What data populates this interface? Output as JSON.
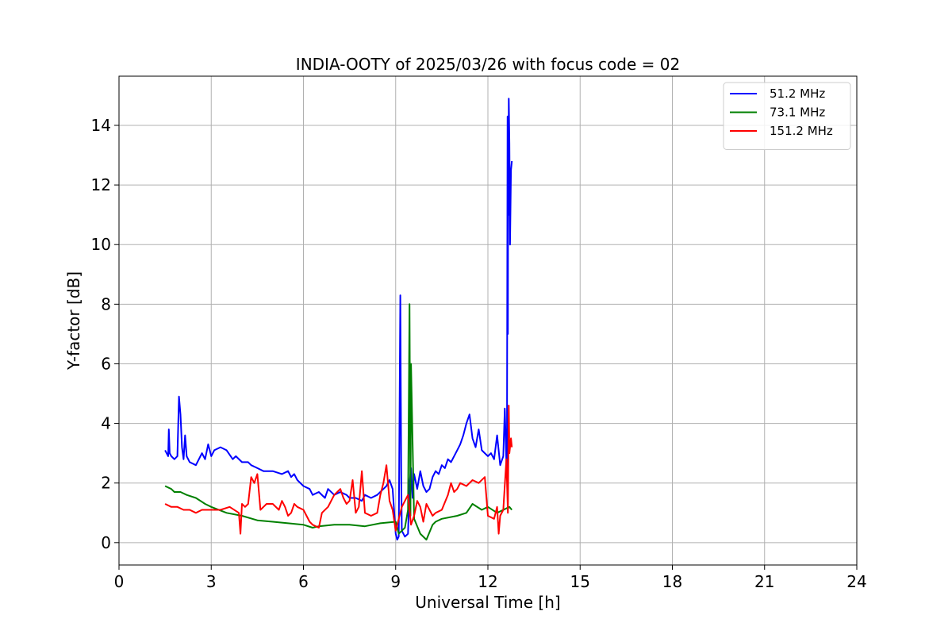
{
  "chart_data": {
    "type": "line",
    "title": "INDIA-OOTY of 2025/03/26 with focus code = 02",
    "xlabel": "Universal Time [h]",
    "ylabel": "Y-factor [dB]",
    "xlim": [
      0,
      24
    ],
    "ylim": [
      -0.75,
      15.65
    ],
    "xticks": [
      0,
      3,
      6,
      9,
      12,
      15,
      18,
      21,
      24
    ],
    "yticks": [
      0,
      2,
      4,
      6,
      8,
      10,
      12,
      14
    ],
    "grid": true,
    "legend_position": "top-right",
    "series": [
      {
        "name": "51.2 MHz",
        "color": "#0000ff",
        "x": [
          1.5,
          1.6,
          1.62,
          1.65,
          1.7,
          1.8,
          1.9,
          1.95,
          2.0,
          2.05,
          2.1,
          2.15,
          2.2,
          2.3,
          2.5,
          2.7,
          2.8,
          2.9,
          3.0,
          3.1,
          3.3,
          3.5,
          3.7,
          3.8,
          4.0,
          4.2,
          4.3,
          4.5,
          4.7,
          5.0,
          5.3,
          5.5,
          5.6,
          5.7,
          5.8,
          6.0,
          6.2,
          6.3,
          6.5,
          6.7,
          6.8,
          7.0,
          7.2,
          7.4,
          7.5,
          7.7,
          7.9,
          8.0,
          8.2,
          8.4,
          8.6,
          8.7,
          8.8,
          8.9,
          9.0,
          9.05,
          9.1,
          9.15,
          9.18,
          9.2,
          9.3,
          9.4,
          9.45,
          9.5,
          9.55,
          9.6,
          9.7,
          9.8,
          9.9,
          10.0,
          10.1,
          10.2,
          10.3,
          10.4,
          10.5,
          10.6,
          10.7,
          10.8,
          10.9,
          11.0,
          11.1,
          11.2,
          11.3,
          11.4,
          11.5,
          11.6,
          11.7,
          11.8,
          11.9,
          12.0,
          12.1,
          12.2,
          12.3,
          12.4,
          12.5,
          12.55,
          12.6,
          12.62,
          12.64,
          12.65,
          12.66,
          12.67,
          12.68,
          12.7,
          12.72,
          12.75,
          12.78
        ],
        "y": [
          3.1,
          2.9,
          3.8,
          3.0,
          2.9,
          2.8,
          2.9,
          4.9,
          4.3,
          3.2,
          2.8,
          3.6,
          2.9,
          2.7,
          2.6,
          3.0,
          2.8,
          3.3,
          2.9,
          3.1,
          3.2,
          3.1,
          2.8,
          2.9,
          2.7,
          2.7,
          2.6,
          2.5,
          2.4,
          2.4,
          2.3,
          2.4,
          2.2,
          2.3,
          2.1,
          1.9,
          1.8,
          1.6,
          1.7,
          1.5,
          1.8,
          1.6,
          1.7,
          1.6,
          1.5,
          1.5,
          1.4,
          1.6,
          1.5,
          1.6,
          1.8,
          1.9,
          2.1,
          1.8,
          0.3,
          0.1,
          0.2,
          8.3,
          2.5,
          0.4,
          0.2,
          0.3,
          2.0,
          2.5,
          1.5,
          2.3,
          1.8,
          2.4,
          1.9,
          1.7,
          1.8,
          2.2,
          2.4,
          2.3,
          2.6,
          2.5,
          2.8,
          2.7,
          2.9,
          3.1,
          3.3,
          3.6,
          4.0,
          4.3,
          3.5,
          3.2,
          3.8,
          3.1,
          3.0,
          2.9,
          3.0,
          2.8,
          3.6,
          2.6,
          2.9,
          4.5,
          2.7,
          2.5,
          14.3,
          7.0,
          14.2,
          11.0,
          14.9,
          13.4,
          10.0,
          12.5,
          12.8
        ]
      },
      {
        "name": "73.1 MHz",
        "color": "#008000",
        "x": [
          1.5,
          1.7,
          1.8,
          2.0,
          2.2,
          2.5,
          2.8,
          3.0,
          3.5,
          4.0,
          4.5,
          5.0,
          5.5,
          6.0,
          6.3,
          6.5,
          7.0,
          7.5,
          8.0,
          8.5,
          9.0,
          9.1,
          9.2,
          9.3,
          9.4,
          9.45,
          9.48,
          9.5,
          9.6,
          9.8,
          10.0,
          10.2,
          10.3,
          10.5,
          11.0,
          11.3,
          11.5,
          11.8,
          12.0,
          12.3,
          12.5,
          12.7,
          12.78
        ],
        "y": [
          1.9,
          1.8,
          1.7,
          1.7,
          1.6,
          1.5,
          1.3,
          1.2,
          1.0,
          0.9,
          0.75,
          0.7,
          0.65,
          0.6,
          0.5,
          0.55,
          0.6,
          0.6,
          0.55,
          0.65,
          0.7,
          0.3,
          0.4,
          0.5,
          1.1,
          8.0,
          0.9,
          6.0,
          0.8,
          0.3,
          0.1,
          0.6,
          0.7,
          0.8,
          0.9,
          1.0,
          1.3,
          1.1,
          1.2,
          1.0,
          1.1,
          1.2,
          1.1
        ]
      },
      {
        "name": "151.2 MHz",
        "color": "#ff0000",
        "x": [
          1.5,
          1.7,
          1.9,
          2.1,
          2.3,
          2.5,
          2.7,
          3.0,
          3.3,
          3.6,
          3.9,
          3.95,
          4.0,
          4.1,
          4.2,
          4.3,
          4.4,
          4.5,
          4.6,
          4.7,
          4.8,
          5.0,
          5.2,
          5.3,
          5.4,
          5.5,
          5.6,
          5.7,
          5.8,
          6.0,
          6.2,
          6.3,
          6.5,
          6.6,
          6.8,
          7.0,
          7.2,
          7.3,
          7.4,
          7.5,
          7.6,
          7.7,
          7.8,
          7.9,
          8.0,
          8.2,
          8.4,
          8.5,
          8.6,
          8.7,
          8.8,
          8.9,
          9.0,
          9.2,
          9.4,
          9.5,
          9.6,
          9.7,
          9.8,
          9.9,
          10.0,
          10.2,
          10.3,
          10.5,
          10.7,
          10.8,
          10.9,
          11.0,
          11.1,
          11.3,
          11.5,
          11.7,
          11.9,
          12.0,
          12.2,
          12.3,
          12.35,
          12.4,
          12.5,
          12.6,
          12.65,
          12.68,
          12.7,
          12.75,
          12.78
        ],
        "y": [
          1.3,
          1.2,
          1.2,
          1.1,
          1.1,
          1.0,
          1.1,
          1.1,
          1.1,
          1.2,
          1.0,
          0.3,
          1.3,
          1.2,
          1.3,
          2.2,
          2.0,
          2.3,
          1.1,
          1.2,
          1.3,
          1.3,
          1.1,
          1.4,
          1.2,
          0.9,
          1.0,
          1.3,
          1.2,
          1.1,
          0.7,
          0.6,
          0.5,
          1.0,
          1.2,
          1.6,
          1.8,
          1.5,
          1.3,
          1.4,
          2.1,
          1.0,
          1.2,
          2.4,
          1.0,
          0.9,
          1.0,
          1.6,
          2.0,
          2.6,
          1.4,
          1.1,
          0.4,
          1.2,
          1.6,
          0.6,
          0.9,
          1.4,
          1.2,
          0.7,
          1.3,
          0.9,
          1.0,
          1.1,
          1.6,
          2.0,
          1.7,
          1.8,
          2.0,
          1.9,
          2.1,
          2.0,
          2.2,
          0.9,
          0.8,
          1.2,
          0.3,
          0.9,
          1.1,
          2.8,
          1.0,
          4.6,
          3.0,
          3.5,
          3.2
        ]
      }
    ]
  }
}
